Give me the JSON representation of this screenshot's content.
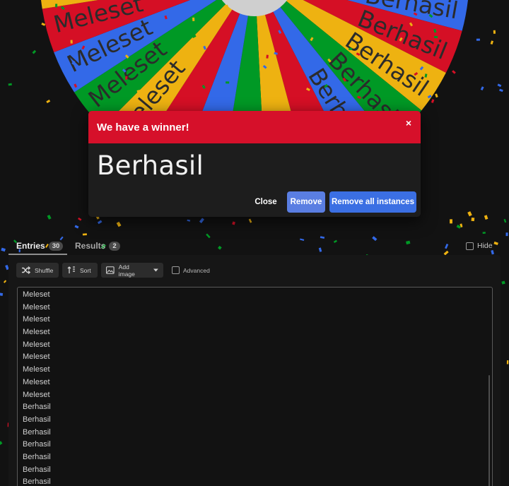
{
  "wheel": {
    "segment_colors": [
      "#3369e8",
      "#d50f25",
      "#eeb211",
      "#009925"
    ],
    "labels_right": [
      "Berhasil",
      "Berhasil",
      "Berhasil",
      "Berhasil",
      "Berhasil"
    ],
    "labels_left": [
      "Meleset",
      "Meleset",
      "Meleset",
      "Meleset"
    ]
  },
  "modal": {
    "title": "We have a winner!",
    "close_icon": "×",
    "winner": "Berhasil",
    "close_label": "Close",
    "remove_label": "Remove",
    "remove_all_label": "Remove all instances",
    "header_color": "#d6102a"
  },
  "tabs": [
    {
      "label": "Entries",
      "count": "30"
    },
    {
      "label": "Results",
      "count": "2"
    }
  ],
  "hide_label": "Hide",
  "toolbar": {
    "shuffle_label": "Shuffle",
    "sort_label": "Sort",
    "add_image_label": "Add image",
    "advanced_label": "Advanced"
  },
  "entries": [
    "Meleset",
    "Meleset",
    "Meleset",
    "Meleset",
    "Meleset",
    "Meleset",
    "Meleset",
    "Meleset",
    "Meleset",
    "Berhasil",
    "Berhasil",
    "Berhasil",
    "Berhasil",
    "Berhasil",
    "Berhasil",
    "Berhasil"
  ]
}
